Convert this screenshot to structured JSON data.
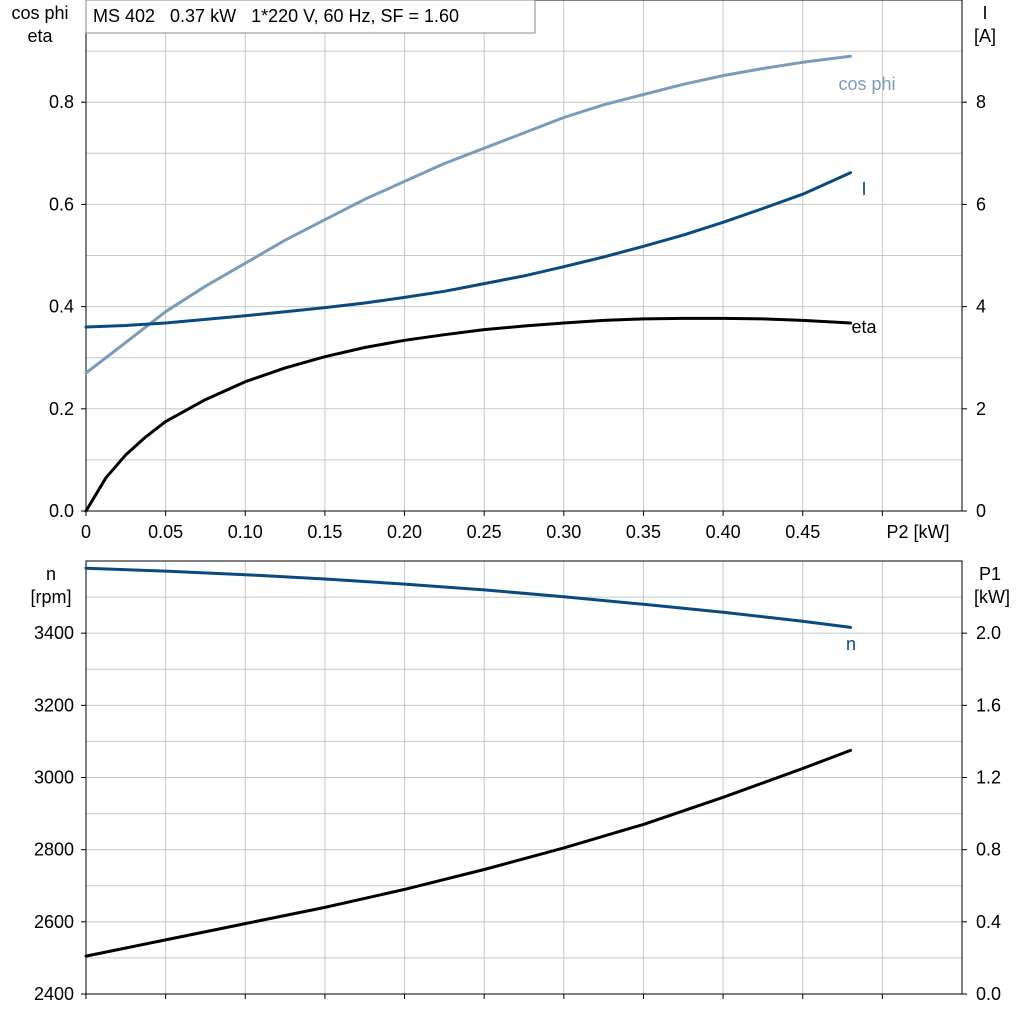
{
  "info_box": "MS 402   0.37 kW   1*220 V, 60 Hz, SF = 1.60",
  "colors": {
    "cos_phi": "#7b9cb9",
    "current": "#0a4a7e",
    "eta": "#000000",
    "speed": "#0a4a7e",
    "p1": "#000000",
    "grid": "#c8c8c8"
  },
  "chart_data": [
    {
      "type": "line",
      "title": "",
      "x_label": "P2 [kW]",
      "x_ticks": [
        "0",
        "0.05",
        "0.10",
        "0.15",
        "0.20",
        "0.25",
        "0.30",
        "0.35",
        "0.40",
        "0.45"
      ],
      "xlim": [
        0,
        0.55
      ],
      "left_axis": {
        "label_line1": "cos phi",
        "label_line2": "eta",
        "ticks": [
          "0.0",
          "0.2",
          "0.4",
          "0.6",
          "0.8"
        ],
        "ylim": [
          0,
          1.0
        ]
      },
      "right_axis": {
        "label_line1": "I",
        "label_line2": "[A]",
        "ticks": [
          "0",
          "2",
          "4",
          "6",
          "8"
        ],
        "ylim": [
          0,
          10
        ]
      },
      "grid": true,
      "series": [
        {
          "name": "cos phi",
          "axis": "left",
          "x": [
            0,
            0.025,
            0.05,
            0.075,
            0.1,
            0.125,
            0.15,
            0.175,
            0.2,
            0.225,
            0.25,
            0.275,
            0.3,
            0.325,
            0.35,
            0.375,
            0.4,
            0.425,
            0.45,
            0.48
          ],
          "y": [
            0.27,
            0.33,
            0.39,
            0.44,
            0.485,
            0.53,
            0.57,
            0.61,
            0.645,
            0.68,
            0.71,
            0.74,
            0.77,
            0.795,
            0.815,
            0.835,
            0.852,
            0.866,
            0.878,
            0.89
          ]
        },
        {
          "name": "I",
          "axis": "right",
          "x": [
            0,
            0.025,
            0.05,
            0.075,
            0.1,
            0.125,
            0.15,
            0.175,
            0.2,
            0.225,
            0.25,
            0.275,
            0.3,
            0.325,
            0.35,
            0.375,
            0.4,
            0.425,
            0.45,
            0.48
          ],
          "y": [
            3.6,
            3.63,
            3.68,
            3.75,
            3.82,
            3.9,
            3.98,
            4.07,
            4.18,
            4.3,
            4.45,
            4.6,
            4.78,
            4.97,
            5.18,
            5.4,
            5.65,
            5.92,
            6.2,
            6.62
          ]
        },
        {
          "name": "eta",
          "axis": "left",
          "x": [
            0,
            0.0125,
            0.025,
            0.0375,
            0.05,
            0.075,
            0.1,
            0.125,
            0.15,
            0.175,
            0.2,
            0.225,
            0.25,
            0.275,
            0.3,
            0.325,
            0.35,
            0.375,
            0.4,
            0.425,
            0.45,
            0.48
          ],
          "y": [
            0.0,
            0.065,
            0.11,
            0.145,
            0.175,
            0.218,
            0.253,
            0.28,
            0.302,
            0.32,
            0.334,
            0.345,
            0.355,
            0.362,
            0.368,
            0.373,
            0.376,
            0.377,
            0.377,
            0.376,
            0.373,
            0.368
          ]
        }
      ]
    },
    {
      "type": "line",
      "title": "",
      "x_label": "",
      "xlim": [
        0,
        0.55
      ],
      "left_axis": {
        "label_line1": "n",
        "label_line2": "[rpm]",
        "ticks": [
          "2400",
          "2600",
          "2800",
          "3000",
          "3200",
          "3400"
        ],
        "ylim": [
          2400,
          3600
        ]
      },
      "right_axis": {
        "label_line1": "P1",
        "label_line2": "[kW]",
        "ticks": [
          "0.0",
          "0.4",
          "0.8",
          "1.2",
          "1.6",
          "2.0"
        ],
        "ylim": [
          0,
          2.4
        ]
      },
      "grid": true,
      "series": [
        {
          "name": "n",
          "axis": "left",
          "x": [
            0,
            0.05,
            0.1,
            0.15,
            0.2,
            0.25,
            0.3,
            0.35,
            0.4,
            0.45,
            0.48
          ],
          "y": [
            3580,
            3572,
            3562,
            3550,
            3536,
            3520,
            3501,
            3480,
            3458,
            3433,
            3416
          ]
        },
        {
          "name": "",
          "axis": "right",
          "x": [
            0,
            0.05,
            0.1,
            0.15,
            0.2,
            0.25,
            0.3,
            0.35,
            0.4,
            0.45,
            0.48
          ],
          "y": [
            0.21,
            0.3,
            0.39,
            0.48,
            0.58,
            0.69,
            0.81,
            0.94,
            1.09,
            1.25,
            1.35
          ]
        }
      ]
    }
  ]
}
